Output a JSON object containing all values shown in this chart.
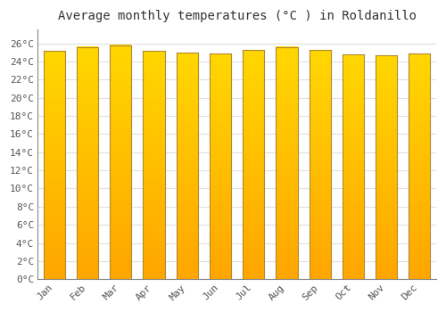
{
  "title": "Average monthly temperatures (°C ) in Roldanillo",
  "months": [
    "Jan",
    "Feb",
    "Mar",
    "Apr",
    "May",
    "Jun",
    "Jul",
    "Aug",
    "Sep",
    "Oct",
    "Nov",
    "Dec"
  ],
  "values": [
    25.2,
    25.6,
    25.8,
    25.2,
    25.0,
    24.9,
    25.3,
    25.6,
    25.3,
    24.8,
    24.7,
    24.9
  ],
  "bar_color_bottom": "#FFA500",
  "bar_color_top": "#FFD700",
  "bar_edge_color": "#A07820",
  "background_color": "#FFFFFF",
  "plot_bg_color": "#FFFFFF",
  "grid_color": "#E0E0E0",
  "yticks": [
    0,
    2,
    4,
    6,
    8,
    10,
    12,
    14,
    16,
    18,
    20,
    22,
    24,
    26
  ],
  "ylim": [
    0,
    27.5
  ],
  "xlim": [
    -0.5,
    11.5
  ],
  "title_fontsize": 10,
  "tick_fontsize": 8,
  "bar_width": 0.65
}
